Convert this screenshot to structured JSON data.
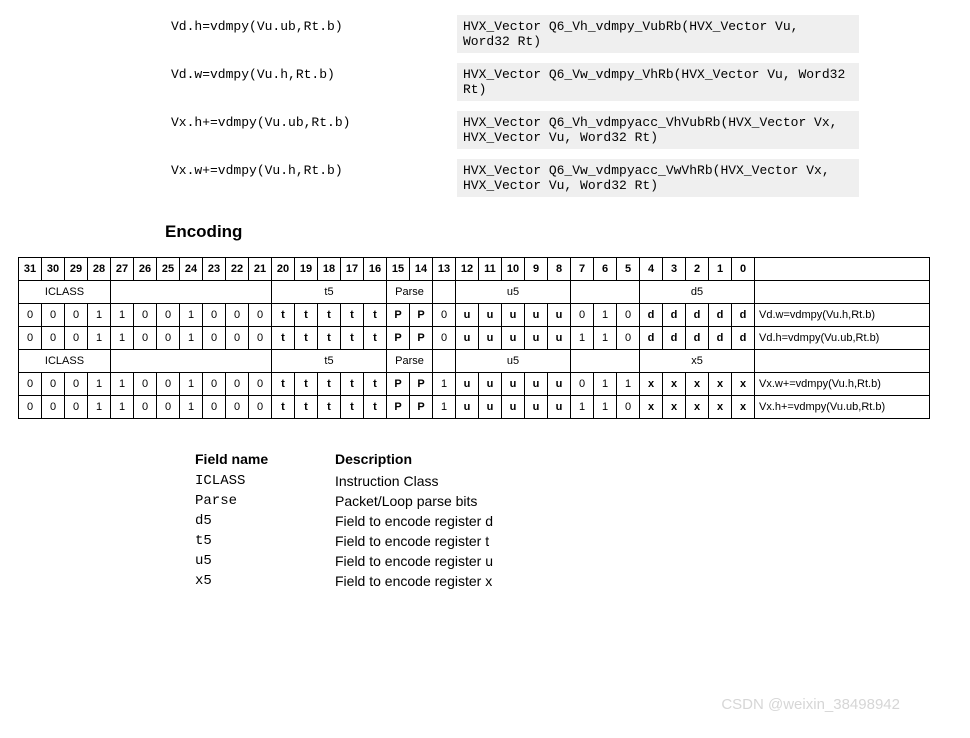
{
  "intrinsics": [
    {
      "syntax": "Vd.h=vdmpy(Vu.ub,Rt.b)",
      "cfunc": "HVX_Vector Q6_Vh_vdmpy_VubRb(HVX_Vector Vu, Word32 Rt)"
    },
    {
      "syntax": "Vd.w=vdmpy(Vu.h,Rt.b)",
      "cfunc": "HVX_Vector Q6_Vw_vdmpy_VhRb(HVX_Vector Vu, Word32 Rt)"
    },
    {
      "syntax": "Vx.h+=vdmpy(Vu.ub,Rt.b)",
      "cfunc": "HVX_Vector Q6_Vh_vdmpyacc_VhVubRb(HVX_Vector Vx, HVX_Vector Vu, Word32 Rt)"
    },
    {
      "syntax": "Vx.w+=vdmpy(Vu.h,Rt.b)",
      "cfunc": "HVX_Vector Q6_Vw_vdmpyacc_VwVhRb(HVX_Vector Vx, HVX_Vector Vu, Word32 Rt)"
    }
  ],
  "section_title": "Encoding",
  "bit_headers": [
    "31",
    "30",
    "29",
    "28",
    "27",
    "26",
    "25",
    "24",
    "23",
    "22",
    "21",
    "20",
    "19",
    "18",
    "17",
    "16",
    "15",
    "14",
    "13",
    "12",
    "11",
    "10",
    "9",
    "8",
    "7",
    "6",
    "5",
    "4",
    "3",
    "2",
    "1",
    "0",
    ""
  ],
  "group_rows": [
    [
      {
        "span": 4,
        "label": "ICLASS"
      },
      {
        "span": 7,
        "label": ""
      },
      {
        "span": 5,
        "label": "t5"
      },
      {
        "span": 2,
        "label": "Parse"
      },
      {
        "span": 1,
        "label": ""
      },
      {
        "span": 5,
        "label": "u5"
      },
      {
        "span": 3,
        "label": ""
      },
      {
        "span": 5,
        "label": "d5"
      },
      {
        "span": 1,
        "label": "",
        "desc": true
      }
    ],
    [
      {
        "span": 4,
        "label": "ICLASS"
      },
      {
        "span": 7,
        "label": ""
      },
      {
        "span": 5,
        "label": "t5"
      },
      {
        "span": 2,
        "label": "Parse"
      },
      {
        "span": 1,
        "label": ""
      },
      {
        "span": 5,
        "label": "u5"
      },
      {
        "span": 3,
        "label": ""
      },
      {
        "span": 5,
        "label": "x5"
      },
      {
        "span": 1,
        "label": "",
        "desc": true
      }
    ]
  ],
  "bit_rows": [
    {
      "bits": [
        "0",
        "0",
        "0",
        "1",
        "1",
        "0",
        "0",
        "1",
        "0",
        "0",
        "0",
        "t",
        "t",
        "t",
        "t",
        "t",
        "P",
        "P",
        "0",
        "u",
        "u",
        "u",
        "u",
        "u",
        "0",
        "1",
        "0",
        "d",
        "d",
        "d",
        "d",
        "d"
      ],
      "desc": "Vd.w=vdmpy(Vu.h,Rt.b)"
    },
    {
      "bits": [
        "0",
        "0",
        "0",
        "1",
        "1",
        "0",
        "0",
        "1",
        "0",
        "0",
        "0",
        "t",
        "t",
        "t",
        "t",
        "t",
        "P",
        "P",
        "0",
        "u",
        "u",
        "u",
        "u",
        "u",
        "1",
        "1",
        "0",
        "d",
        "d",
        "d",
        "d",
        "d"
      ],
      "desc": "Vd.h=vdmpy(Vu.ub,Rt.b)"
    },
    {
      "bits": [
        "0",
        "0",
        "0",
        "1",
        "1",
        "0",
        "0",
        "1",
        "0",
        "0",
        "0",
        "t",
        "t",
        "t",
        "t",
        "t",
        "P",
        "P",
        "1",
        "u",
        "u",
        "u",
        "u",
        "u",
        "0",
        "1",
        "1",
        "x",
        "x",
        "x",
        "x",
        "x"
      ],
      "desc": "Vx.w+=vdmpy(Vu.h,Rt.b)"
    },
    {
      "bits": [
        "0",
        "0",
        "0",
        "1",
        "1",
        "0",
        "0",
        "1",
        "0",
        "0",
        "0",
        "t",
        "t",
        "t",
        "t",
        "t",
        "P",
        "P",
        "1",
        "u",
        "u",
        "u",
        "u",
        "u",
        "1",
        "1",
        "0",
        "x",
        "x",
        "x",
        "x",
        "x"
      ],
      "desc": "Vx.h+=vdmpy(Vu.ub,Rt.b)"
    }
  ],
  "field_header": {
    "name": "Field name",
    "desc": "Description"
  },
  "fields": [
    {
      "name": "ICLASS",
      "desc": "Instruction Class"
    },
    {
      "name": "Parse",
      "desc": "Packet/Loop parse bits"
    },
    {
      "name": "d5",
      "desc": "Field to encode register d"
    },
    {
      "name": "t5",
      "desc": "Field to encode register t"
    },
    {
      "name": "u5",
      "desc": "Field to encode register u"
    },
    {
      "name": "x5",
      "desc": "Field to encode register x"
    }
  ],
  "watermark": "CSDN @weixin_38498942"
}
